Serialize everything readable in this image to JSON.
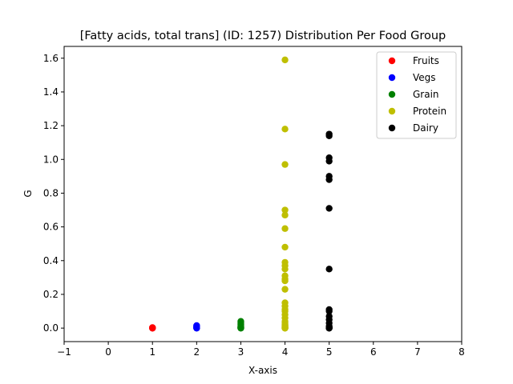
{
  "chart_data": {
    "type": "scatter",
    "title": "[Fatty acids, total trans] (ID: 1257) Distribution Per Food Group",
    "xlabel": "X-axis",
    "ylabel": "G",
    "xlim": [
      -1,
      8
    ],
    "ylim": [
      -0.08,
      1.67
    ],
    "xticks": [
      -1,
      0,
      1,
      2,
      3,
      4,
      5,
      6,
      7,
      8
    ],
    "yticks": [
      0.0,
      0.2,
      0.4,
      0.6,
      0.8,
      1.0,
      1.2,
      1.4,
      1.6
    ],
    "ytick_labels": [
      "0.0",
      "0.2",
      "0.4",
      "0.6",
      "0.8",
      "1.0",
      "1.2",
      "1.4",
      "1.6"
    ],
    "grid": false,
    "legend_position": "top-right",
    "series": [
      {
        "name": "Fruits",
        "color": "#ff0000",
        "x": [
          1,
          1,
          1,
          1,
          1
        ],
        "y": [
          0.0,
          0.0,
          0.0,
          0.002,
          0.003
        ]
      },
      {
        "name": "Vegs",
        "color": "#0000ff",
        "x": [
          2,
          2,
          2,
          2,
          2,
          2
        ],
        "y": [
          0.0,
          0.0,
          0.003,
          0.006,
          0.01,
          0.015
        ]
      },
      {
        "name": "Grain",
        "color": "#008000",
        "x": [
          3,
          3,
          3,
          3,
          3,
          3,
          3,
          3
        ],
        "y": [
          0.0,
          0.0,
          0.003,
          0.006,
          0.01,
          0.02,
          0.03,
          0.04
        ]
      },
      {
        "name": "Protein",
        "color": "#bfbf00",
        "x": [
          4,
          4,
          4,
          4,
          4,
          4,
          4,
          4,
          4,
          4,
          4,
          4,
          4,
          4,
          4,
          4,
          4,
          4,
          4,
          4,
          4,
          4,
          4,
          4,
          4,
          4,
          4,
          4,
          4,
          4
        ],
        "y": [
          1.59,
          1.18,
          0.97,
          0.7,
          0.67,
          0.59,
          0.48,
          0.39,
          0.37,
          0.35,
          0.31,
          0.29,
          0.28,
          0.23,
          0.15,
          0.13,
          0.11,
          0.1,
          0.08,
          0.06,
          0.04,
          0.03,
          0.02,
          0.015,
          0.01,
          0.006,
          0.003,
          0.0,
          0.0,
          0.0
        ]
      },
      {
        "name": "Dairy",
        "color": "#000000",
        "x": [
          5,
          5,
          5,
          5,
          5,
          5,
          5,
          5,
          5,
          5,
          5,
          5,
          5,
          5,
          5,
          5,
          5,
          5
        ],
        "y": [
          1.15,
          1.14,
          1.01,
          0.99,
          0.9,
          0.88,
          0.71,
          0.35,
          0.11,
          0.1,
          0.07,
          0.05,
          0.03,
          0.01,
          0.005,
          0.0,
          0.0,
          0.0
        ]
      }
    ]
  }
}
